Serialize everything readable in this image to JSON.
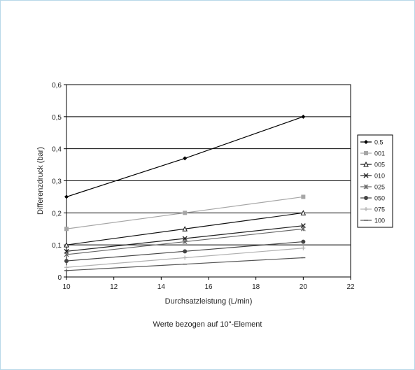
{
  "chart_data": {
    "type": "line",
    "xlabel": "Durchsatzleistung (L/min)",
    "ylabel": "Differenzdruck (bar)",
    "xlim": [
      10,
      22
    ],
    "ylim": [
      0,
      0.6
    ],
    "x_ticks": [
      "10",
      "12",
      "14",
      "16",
      "18",
      "20",
      "22"
    ],
    "y_ticks": [
      "0",
      "0,1",
      "0,2",
      "0,3",
      "0,4",
      "0,5",
      "0,6"
    ],
    "grid": "horizontal",
    "legend": "right",
    "x": [
      10,
      15,
      20
    ],
    "series": [
      {
        "name": "0.5",
        "values": [
          0.25,
          0.37,
          0.5
        ],
        "color": "#000000",
        "marker": "diamond"
      },
      {
        "name": "001",
        "values": [
          0.15,
          0.2,
          0.25
        ],
        "color": "#a6a6a6",
        "marker": "square"
      },
      {
        "name": "005",
        "values": [
          0.1,
          0.15,
          0.2
        ],
        "color": "#111111",
        "marker": "triangle"
      },
      {
        "name": "010",
        "values": [
          0.08,
          0.12,
          0.16
        ],
        "color": "#222222",
        "marker": "x"
      },
      {
        "name": "025",
        "values": [
          0.07,
          0.11,
          0.15
        ],
        "color": "#666666",
        "marker": "star"
      },
      {
        "name": "050",
        "values": [
          0.05,
          0.08,
          0.11
        ],
        "color": "#444444",
        "marker": "circle"
      },
      {
        "name": "075",
        "values": [
          0.03,
          0.06,
          0.09
        ],
        "color": "#b0b0b0",
        "marker": "plus"
      },
      {
        "name": "100",
        "values": [
          0.02,
          0.04,
          0.06
        ],
        "color": "#555555",
        "marker": "dash"
      }
    ]
  },
  "footer": {
    "caption": "Werte bezogen auf 10\"-Element"
  }
}
